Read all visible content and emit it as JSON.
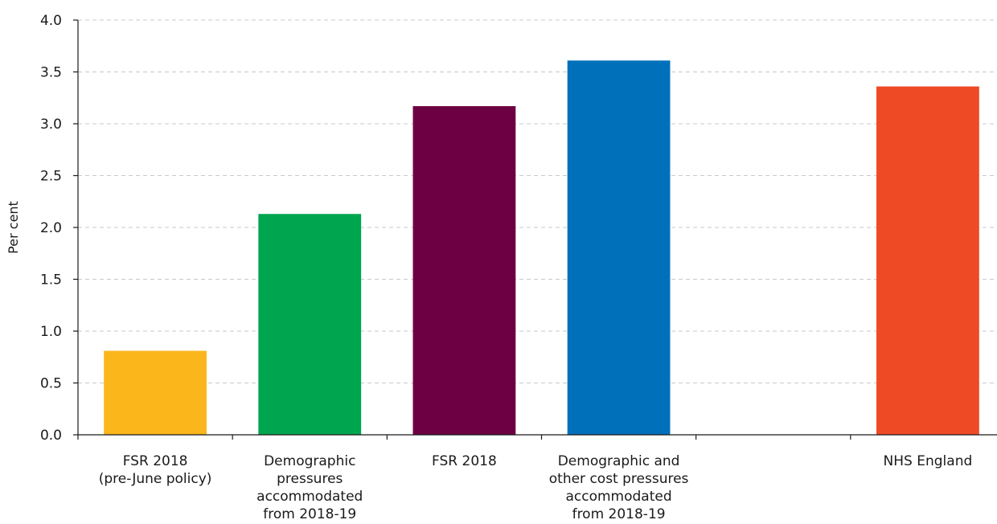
{
  "chart_data": {
    "type": "bar",
    "title": "",
    "xlabel": "",
    "ylabel": "Per cent",
    "ylim": [
      0,
      4.0
    ],
    "yticks": [
      "0.0",
      "0.5",
      "1.0",
      "1.5",
      "2.0",
      "2.5",
      "3.0",
      "3.5",
      "4.0"
    ],
    "grid": true,
    "categories": [
      [
        "FSR 2018",
        "(pre-June policy)"
      ],
      [
        "Demographic",
        "pressures",
        "accommodated",
        "from 2018-19"
      ],
      [
        "FSR 2018"
      ],
      [
        "Demographic and",
        "other cost pressures",
        "accommodated",
        "from 2018-19"
      ],
      [],
      [
        "NHS England"
      ]
    ],
    "values": [
      0.81,
      2.13,
      3.17,
      3.61,
      null,
      3.36
    ],
    "colors": [
      "#FBB61B",
      "#00A54F",
      "#6D0042",
      "#0070BA",
      null,
      "#EF4A26"
    ]
  }
}
